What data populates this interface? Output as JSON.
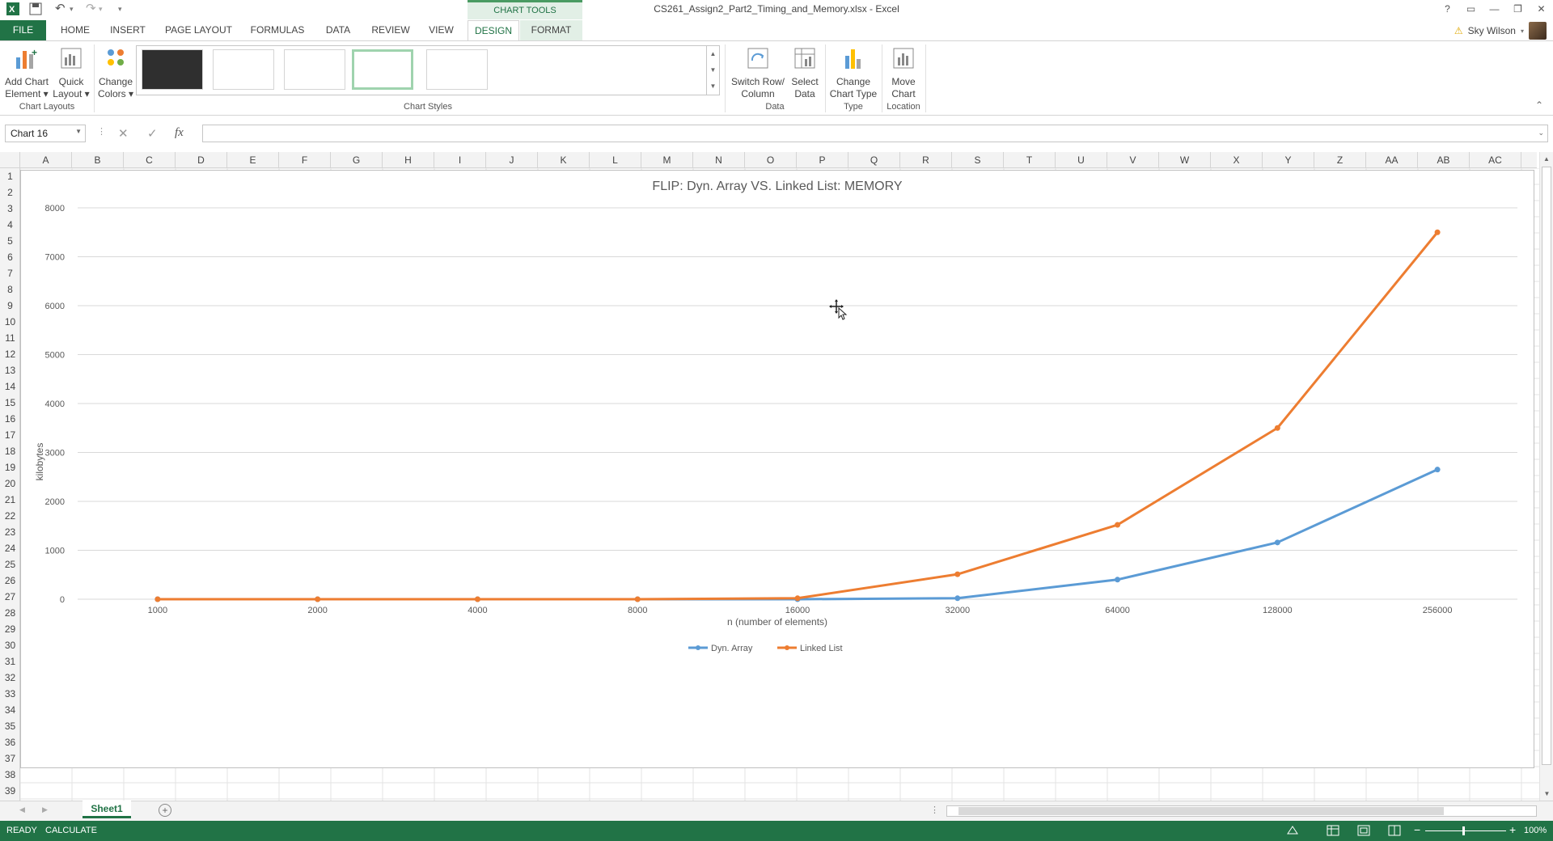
{
  "window": {
    "title": "CS261_Assign2_Part2_Timing_and_Memory.xlsx - Excel",
    "help": "?",
    "controls": [
      "▭",
      "—",
      "❐",
      "✕"
    ]
  },
  "qat": {
    "undo": "↶",
    "redo": "↷",
    "customize": "▾"
  },
  "chart_tools_label": "CHART TOOLS",
  "tabs": [
    "FILE",
    "HOME",
    "INSERT",
    "PAGE LAYOUT",
    "FORMULAS",
    "DATA",
    "REVIEW",
    "VIEW",
    "DESIGN",
    "FORMAT"
  ],
  "user": {
    "name": "Sky Wilson",
    "warning": "⚠"
  },
  "ribbon": {
    "add_chart_element": [
      "Add Chart",
      "Element ▾"
    ],
    "quick_layout": [
      "Quick",
      "Layout ▾"
    ],
    "change_colors": [
      "Change",
      "Colors ▾"
    ],
    "switch_row_column": [
      "Switch Row/",
      "Column"
    ],
    "select_data": [
      "Select",
      "Data"
    ],
    "change_chart_type": [
      "Change",
      "Chart Type"
    ],
    "move_chart": [
      "Move",
      "Chart"
    ],
    "groups": {
      "chart_layouts": "Chart Layouts",
      "chart_styles": "Chart Styles",
      "data": "Data",
      "type": "Type",
      "location": "Location"
    },
    "collapse": "⌃"
  },
  "formula_bar": {
    "name_box": "Chart 16",
    "fx": "fx",
    "value": ""
  },
  "columns": [
    "A",
    "B",
    "C",
    "D",
    "E",
    "F",
    "G",
    "H",
    "I",
    "J",
    "K",
    "L",
    "M",
    "N",
    "O",
    "P",
    "Q",
    "R",
    "S",
    "T",
    "U",
    "V",
    "W",
    "X",
    "Y",
    "Z",
    "AA",
    "AB",
    "AC"
  ],
  "rows": [
    "1",
    "2",
    "3",
    "4",
    "5",
    "6",
    "7",
    "8",
    "9",
    "10",
    "11",
    "12",
    "13",
    "14",
    "15",
    "16",
    "17",
    "18",
    "19",
    "20",
    "21",
    "22",
    "23",
    "24",
    "25",
    "26",
    "27",
    "28",
    "29",
    "30",
    "31",
    "32",
    "33",
    "34",
    "35",
    "36",
    "37",
    "38",
    "39"
  ],
  "chart_data": {
    "type": "line",
    "title": "FLIP: Dyn. Array VS. Linked List: MEMORY",
    "xlabel": "n (number of elements)",
    "ylabel": "kilobytes",
    "categories": [
      "1000",
      "2000",
      "4000",
      "8000",
      "16000",
      "32000",
      "64000",
      "128000",
      "256000"
    ],
    "ylim": [
      0,
      8000
    ],
    "yticks": [
      "0",
      "1000",
      "2000",
      "3000",
      "4000",
      "5000",
      "6000",
      "7000",
      "8000"
    ],
    "grid": true,
    "legend_position": "bottom",
    "series": [
      {
        "name": "Dyn. Array",
        "color": "#5b9bd5",
        "values": [
          0,
          0,
          0,
          0,
          0,
          20,
          400,
          1160,
          2650
        ]
      },
      {
        "name": "Linked List",
        "color": "#ed7d31",
        "values": [
          0,
          0,
          0,
          0,
          20,
          510,
          1520,
          3500,
          7500
        ]
      }
    ]
  },
  "sheets": {
    "active": "Sheet1",
    "add": "+"
  },
  "status": {
    "ready": "READY",
    "calculate": "CALCULATE",
    "zoom": "100%",
    "zoom_minus": "−",
    "zoom_plus": "+"
  }
}
